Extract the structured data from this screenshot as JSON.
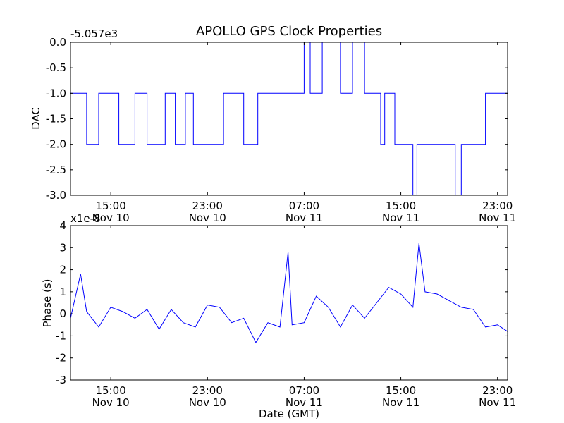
{
  "title": "APOLLO GPS Clock Properties",
  "colors": {
    "line": "#0000ff",
    "axes": "#000000",
    "background": "#ffffff"
  },
  "chart_data": [
    {
      "type": "line",
      "ylabel": "DAC",
      "offset_label": "-5.057e3",
      "ylim": [
        -3.0,
        0.0
      ],
      "y_ticks": [
        "-3.0",
        "-2.5",
        "-2.0",
        "-1.5",
        "-1.0",
        "-0.5",
        "0.0"
      ],
      "x_ticks": [
        {
          "time": "15:00",
          "date": "Nov 10"
        },
        {
          "time": "23:00",
          "date": "Nov 10"
        },
        {
          "time": "07:00",
          "date": "Nov 11"
        },
        {
          "time": "15:00",
          "date": "Nov 11"
        },
        {
          "time": "23:00",
          "date": "Nov 11"
        }
      ],
      "grid": false,
      "series": [
        {
          "x": [
            "Nov 10 11:40",
            "Nov 10 13:00",
            "Nov 10 14:00",
            "Nov 10 15:40",
            "Nov 10 17:00",
            "Nov 10 18:00",
            "Nov 10 19:30",
            "Nov 10 20:20",
            "Nov 10 21:10",
            "Nov 10 21:50",
            "Nov 11 00:20",
            "Nov 11 02:00",
            "Nov 11 03:10",
            "Nov 11 04:20",
            "Nov 11 05:30",
            "Nov 11 06:00",
            "Nov 11 07:00",
            "Nov 11 07:30",
            "Nov 11 08:30",
            "Nov 11 10:00",
            "Nov 11 11:00",
            "Nov 11 12:00",
            "Nov 11 12:30",
            "Nov 11 13:20",
            "Nov 11 13:40",
            "Nov 11 14:30",
            "Nov 11 15:00",
            "Nov 11 16:00",
            "Nov 11 16:20",
            "Nov 11 17:50",
            "Nov 11 18:00",
            "Nov 11 19:30",
            "Nov 11 20:00",
            "Nov 11 21:50",
            "Nov 11 22:00",
            "Nov 11 23:50"
          ],
          "y": [
            -1.0,
            -2.0,
            -1.0,
            -2.0,
            -1.0,
            -2.0,
            -1.0,
            -2.0,
            -1.0,
            -2.0,
            -1.0,
            -2.0,
            -1.0,
            -1.0,
            -1.0,
            -1.0,
            0.0,
            -1.0,
            0.0,
            -1.0,
            0.0,
            -1.0,
            -1.0,
            -2.0,
            -1.0,
            -2.0,
            -2.0,
            -3.0,
            -2.0,
            -2.0,
            -2.0,
            -3.0,
            -2.0,
            -2.0,
            -1.0,
            -1.0
          ]
        }
      ]
    },
    {
      "type": "line",
      "xlabel": "Date (GMT)",
      "ylabel": "Phase (s)",
      "offset_label": "x1e-8",
      "ylim": [
        -3,
        4
      ],
      "y_ticks": [
        "-3",
        "-2",
        "-1",
        "0",
        "1",
        "2",
        "3",
        "4"
      ],
      "x_ticks": [
        {
          "time": "15:00",
          "date": "Nov 10"
        },
        {
          "time": "23:00",
          "date": "Nov 10"
        },
        {
          "time": "07:00",
          "date": "Nov 11"
        },
        {
          "time": "15:00",
          "date": "Nov 11"
        },
        {
          "time": "23:00",
          "date": "Nov 11"
        }
      ],
      "grid": false,
      "series": [
        {
          "x": [
            "Nov 10 11:40",
            "Nov 10 12:30",
            "Nov 10 13:00",
            "Nov 10 14:00",
            "Nov 10 15:00",
            "Nov 10 16:00",
            "Nov 10 17:00",
            "Nov 10 18:00",
            "Nov 10 19:00",
            "Nov 10 20:00",
            "Nov 10 21:00",
            "Nov 10 22:00",
            "Nov 10 23:00",
            "Nov 11 00:00",
            "Nov 11 01:00",
            "Nov 11 02:00",
            "Nov 11 03:00",
            "Nov 11 04:00",
            "Nov 11 05:00",
            "Nov 11 05:40",
            "Nov 11 06:00",
            "Nov 11 07:00",
            "Nov 11 08:00",
            "Nov 11 09:00",
            "Nov 11 10:00",
            "Nov 11 11:00",
            "Nov 11 12:00",
            "Nov 11 13:00",
            "Nov 11 14:00",
            "Nov 11 15:00",
            "Nov 11 16:00",
            "Nov 11 16:30",
            "Nov 11 17:00",
            "Nov 11 18:00",
            "Nov 11 19:00",
            "Nov 11 20:00",
            "Nov 11 21:00",
            "Nov 11 22:00",
            "Nov 11 23:00",
            "Nov 11 23:50"
          ],
          "y": [
            -0.2,
            1.8,
            0.1,
            -0.6,
            0.3,
            0.1,
            -0.2,
            0.2,
            -0.7,
            0.2,
            -0.4,
            -0.6,
            0.4,
            0.3,
            -0.4,
            -0.2,
            -1.3,
            -0.4,
            -0.6,
            2.8,
            -0.5,
            -0.4,
            0.8,
            0.3,
            -0.6,
            0.4,
            -0.2,
            0.5,
            1.2,
            0.9,
            0.3,
            3.2,
            1.0,
            0.9,
            0.6,
            0.3,
            0.2,
            -0.6,
            -0.5,
            -0.8
          ]
        }
      ]
    }
  ]
}
